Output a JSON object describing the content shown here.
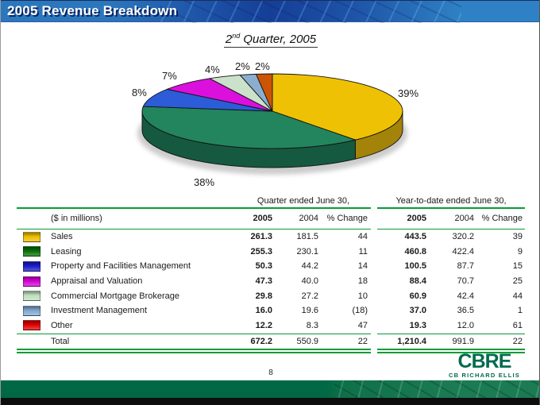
{
  "header": {
    "title": "2005 Revenue Breakdown"
  },
  "subtitle": {
    "prefix": "2",
    "superscript": "nd",
    "rest": " Quarter, 2005"
  },
  "accent_colors": {
    "topbar_blue": "#2B77BD",
    "topbar_navy": "#153E97",
    "rule_green": "#089B38",
    "footer_green": "#006845",
    "logo_green": "#006A4E"
  },
  "chart_data": [
    {
      "type": "pie",
      "title": "2nd Quarter, 2005",
      "style": "3d-pie, starts at 12 o'clock, clockwise",
      "categories": [
        "Sales",
        "Leasing",
        "Property and Facilities Management",
        "Appraisal and Valuation",
        "Commercial Mortgage Brokerage",
        "Investment Management",
        "Other"
      ],
      "values_pct": [
        39,
        38,
        8,
        7,
        4,
        2,
        2
      ],
      "labels": [
        "39%",
        "38%",
        "8%",
        "7%",
        "4%",
        "2%",
        "2%"
      ],
      "colors": [
        "#EFC104",
        "#23855D",
        "#2C5CD8",
        "#DC10DC",
        "#C9E2C9",
        "#8BAECF",
        "#CC5504"
      ],
      "side_colors": [
        "#A3830A",
        "#155940",
        "#1C3C96",
        "#8F0A8F",
        "#94AE94",
        "#5E81A3",
        "#86380B"
      ]
    },
    {
      "type": "table",
      "unit_note": "($ in millions)",
      "group_headers": [
        "Quarter ended June 30,",
        "Year-to-date ended June 30,"
      ],
      "col_headers": [
        "($ in millions)",
        "2005",
        "2004",
        "% Change",
        "2005",
        "2004",
        "% Change"
      ],
      "rows": [
        {
          "label": "Sales",
          "swatch": "#EDBE00",
          "values": [
            "261.3",
            "181.5",
            "44",
            "443.5",
            "320.2",
            "39"
          ]
        },
        {
          "label": "Leasing",
          "swatch": "#057005",
          "values": [
            "255.3",
            "230.1",
            "11",
            "460.8",
            "422.4",
            "9"
          ]
        },
        {
          "label": "Property and Facilities Management",
          "swatch": "#1A1ACC",
          "values": [
            "50.3",
            "44.2",
            "14",
            "100.5",
            "87.7",
            "15"
          ]
        },
        {
          "label": "Appraisal and Valuation",
          "swatch": "#D400D4",
          "values": [
            "47.3",
            "40.0",
            "18",
            "88.4",
            "70.7",
            "25"
          ]
        },
        {
          "label": "Commercial Mortgage Brokerage",
          "swatch": "#BFDFBF",
          "values": [
            "29.8",
            "27.2",
            "10",
            "60.9",
            "42.4",
            "44"
          ]
        },
        {
          "label": "Investment Management",
          "swatch": "#7FA9CF",
          "values": [
            "16.0",
            "19.6",
            "(18)",
            "37.0",
            "36.5",
            "1"
          ]
        },
        {
          "label": "Other",
          "swatch": "#E00000",
          "values": [
            "12.2",
            "8.3",
            "47",
            "19.3",
            "12.0",
            "61"
          ]
        }
      ],
      "total_row": {
        "label": "Total",
        "values": [
          "672.2",
          "550.9",
          "22",
          "1,210.4",
          "991.9",
          "22"
        ]
      }
    }
  ],
  "footer": {
    "page_number": "8",
    "logo_text": "CBRE",
    "logo_subtext": "CB RICHARD ELLIS"
  }
}
